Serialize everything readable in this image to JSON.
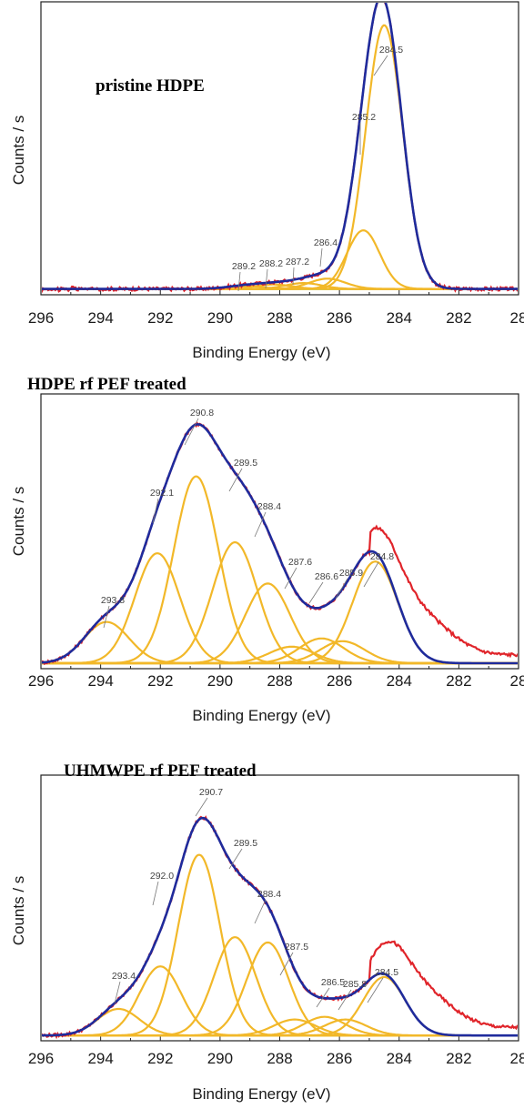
{
  "figure": {
    "colors": {
      "envelope": "#1f2b9c",
      "raw": "#e0242a",
      "components": "#f2b829",
      "baseline": "#5bd43a"
    }
  },
  "chart_data": [
    {
      "type": "line",
      "title": "pristine HDPE",
      "xlabel": "Binding Energy (eV)",
      "ylabel": "Counts / s",
      "xlim": [
        296,
        280
      ],
      "ylim": [
        0,
        1.0
      ],
      "x_tick_labels": [
        "296",
        "294",
        "292",
        "290",
        "288",
        "286",
        "284",
        "282",
        "28"
      ],
      "series": [],
      "components": [
        {
          "center": 284.5,
          "amplitude": 0.9,
          "width": 0.62
        },
        {
          "center": 285.2,
          "amplitude": 0.2,
          "width": 0.55
        },
        {
          "center": 286.4,
          "amplitude": 0.035,
          "width": 0.6
        },
        {
          "center": 287.2,
          "amplitude": 0.02,
          "width": 0.6
        },
        {
          "center": 288.2,
          "amplitude": 0.015,
          "width": 0.6
        },
        {
          "center": 289.2,
          "amplitude": 0.01,
          "width": 0.6
        }
      ],
      "baseline_level": 0.02,
      "peak_labels": [
        {
          "text": "284.5",
          "x": 284.5
        },
        {
          "text": "285.2",
          "x": 285.2
        },
        {
          "text": "286.4",
          "x": 286.4
        },
        {
          "text": "287.2",
          "x": 287.2
        },
        {
          "text": "288.2",
          "x": 288.2
        },
        {
          "text": "289.2",
          "x": 289.2
        }
      ]
    },
    {
      "type": "line",
      "title": "HDPE rf PEF treated",
      "xlabel": "Binding Energy (eV)",
      "ylabel": "Counts / s",
      "xlim": [
        296,
        280
      ],
      "ylim": [
        0,
        1.0
      ],
      "x_tick_labels": [
        "296",
        "294",
        "292",
        "290",
        "288",
        "286",
        "284",
        "282",
        "28"
      ],
      "series": [],
      "components": [
        {
          "center": 293.8,
          "amplitude": 0.15,
          "width": 0.75
        },
        {
          "center": 292.1,
          "amplitude": 0.4,
          "width": 0.75
        },
        {
          "center": 290.8,
          "amplitude": 0.68,
          "width": 0.75
        },
        {
          "center": 289.5,
          "amplitude": 0.44,
          "width": 0.75
        },
        {
          "center": 288.4,
          "amplitude": 0.29,
          "width": 0.75
        },
        {
          "center": 287.6,
          "amplitude": 0.06,
          "width": 0.75
        },
        {
          "center": 286.6,
          "amplitude": 0.09,
          "width": 0.75
        },
        {
          "center": 285.9,
          "amplitude": 0.08,
          "width": 0.75
        },
        {
          "center": 284.8,
          "amplitude": 0.37,
          "width": 0.75
        }
      ],
      "baseline_level": 0.02,
      "peak_labels": [
        {
          "text": "290.8",
          "x": 290.8
        },
        {
          "text": "289.5",
          "x": 289.5
        },
        {
          "text": "292.1",
          "x": 292.1
        },
        {
          "text": "288.4",
          "x": 288.4
        },
        {
          "text": "287.6",
          "x": 287.6
        },
        {
          "text": "286.6",
          "x": 286.6
        },
        {
          "text": "285.9",
          "x": 285.9
        },
        {
          "text": "284.8",
          "x": 284.8
        },
        {
          "text": "293.8",
          "x": 293.8
        }
      ]
    },
    {
      "type": "line",
      "title": "UHMWPE rf PEF treated",
      "xlabel": "Binding Energy (eV)",
      "ylabel": "Counts / s",
      "xlim": [
        296,
        280
      ],
      "ylim": [
        0,
        1.0
      ],
      "x_tick_labels": [
        "296",
        "294",
        "292",
        "290",
        "288",
        "286",
        "284",
        "282",
        "28"
      ],
      "series": [],
      "components": [
        {
          "center": 293.4,
          "amplitude": 0.1,
          "width": 0.7
        },
        {
          "center": 292.0,
          "amplitude": 0.26,
          "width": 0.7
        },
        {
          "center": 290.7,
          "amplitude": 0.68,
          "width": 0.7
        },
        {
          "center": 289.5,
          "amplitude": 0.37,
          "width": 0.7
        },
        {
          "center": 288.4,
          "amplitude": 0.35,
          "width": 0.7
        },
        {
          "center": 287.5,
          "amplitude": 0.06,
          "width": 0.7
        },
        {
          "center": 286.5,
          "amplitude": 0.07,
          "width": 0.7
        },
        {
          "center": 285.8,
          "amplitude": 0.06,
          "width": 0.7
        },
        {
          "center": 284.5,
          "amplitude": 0.22,
          "width": 0.7
        }
      ],
      "baseline_level": 0.02,
      "peak_labels": [
        {
          "text": "290.7",
          "x": 290.7
        },
        {
          "text": "289.5",
          "x": 289.5
        },
        {
          "text": "292.0",
          "x": 292.0
        },
        {
          "text": "288.4",
          "x": 288.4
        },
        {
          "text": "287.5",
          "x": 287.5
        },
        {
          "text": "293.4",
          "x": 293.4
        },
        {
          "text": "286.5",
          "x": 286.5
        },
        {
          "text": "285.8",
          "x": 285.8
        },
        {
          "text": "284.5",
          "x": 284.5
        }
      ]
    }
  ]
}
